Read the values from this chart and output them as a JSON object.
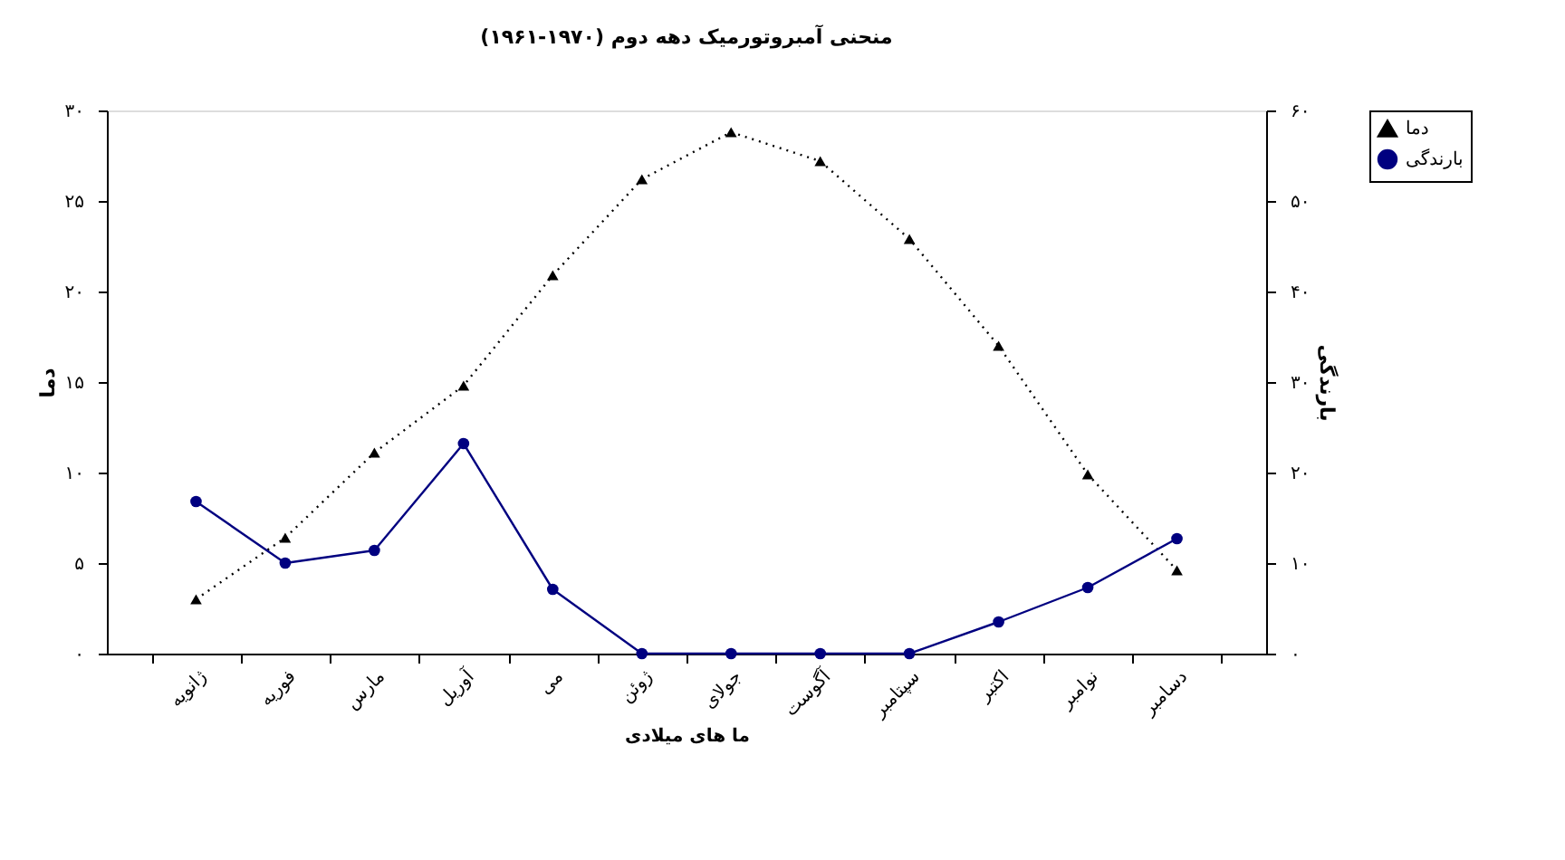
{
  "chart_data": {
    "type": "line",
    "title": "منحنی آمبروتورمیک دهه دوم (۱۹۷۰-۱۹۶۱)",
    "xlabel": "ما های میلادی",
    "ylabel": "دما",
    "y2label": "بارندگی",
    "categories": [
      "ژانویه",
      "فوریه",
      "مارس",
      "آوریل",
      "می",
      "ژوئن",
      "جولای",
      "آگوست",
      "سپتامبر",
      "اکتبر",
      "نوامبر",
      "دسامبر"
    ],
    "series": [
      {
        "name": "دما",
        "color": "#000000",
        "marker": "triangle",
        "line_style": "dotted",
        "values": [
          3.0,
          6.4,
          11.1,
          14.8,
          20.9,
          26.2,
          28.8,
          27.2,
          22.9,
          17.0,
          9.9,
          4.6
        ]
      },
      {
        "name": "بارندگی",
        "color": "#000080",
        "marker": "circle",
        "line_style": "solid",
        "axis": "y2",
        "values": [
          16.8,
          10.0,
          11.4,
          23.2,
          7.1,
          0,
          0,
          0,
          0,
          3.5,
          7.3,
          12.7
        ]
      }
    ],
    "ylim": [
      0,
      30
    ],
    "yticks": [
      {
        "value": 0,
        "label": "۰"
      },
      {
        "value": 5,
        "label": "۵"
      },
      {
        "value": 10,
        "label": "۱۰"
      },
      {
        "value": 15,
        "label": "۱۵"
      },
      {
        "value": 20,
        "label": "۲۰"
      },
      {
        "value": 25,
        "label": "۲۵"
      },
      {
        "value": 30,
        "label": "۳۰"
      }
    ],
    "y2lim": [
      0,
      60
    ],
    "y2ticks": [
      {
        "value": 0,
        "label": "۰"
      },
      {
        "value": 10,
        "label": "۱۰"
      },
      {
        "value": 20,
        "label": "۲۰"
      },
      {
        "value": 30,
        "label": "۳۰"
      },
      {
        "value": 40,
        "label": "۴۰"
      },
      {
        "value": 50,
        "label": "۵۰"
      },
      {
        "value": 60,
        "label": "۶۰"
      }
    ],
    "grid": false,
    "legend": "right"
  }
}
